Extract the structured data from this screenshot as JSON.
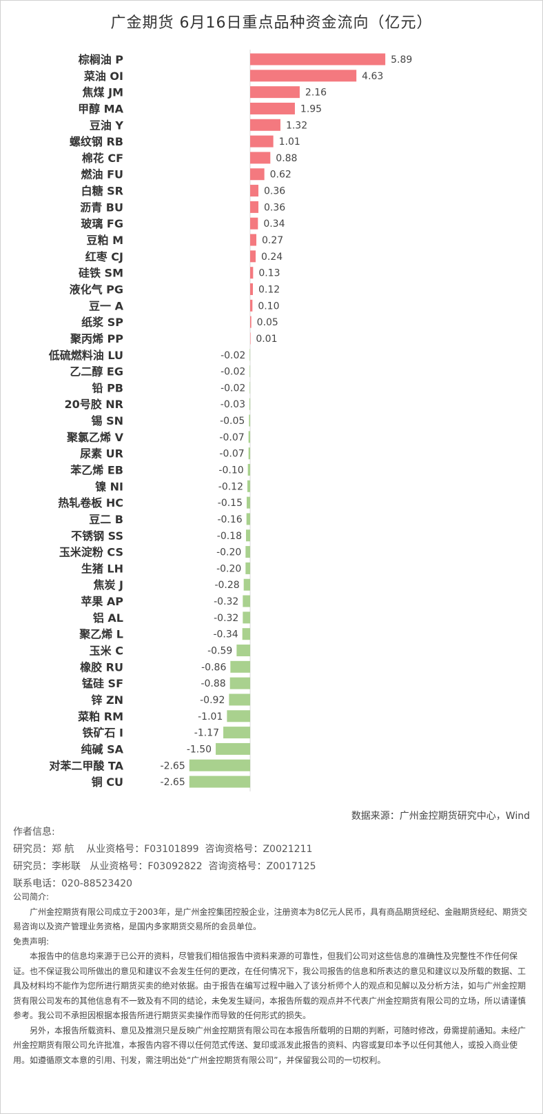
{
  "chart_data": {
    "type": "bar",
    "orientation": "horizontal",
    "title": "广金期货 6月16日重点品种资金流向（亿元）",
    "categories": [
      "棕榈油 P",
      "菜油 OI",
      "焦煤 JM",
      "甲醇 MA",
      "豆油 Y",
      "螺纹钢 RB",
      "棉花 CF",
      "燃油 FU",
      "白糖 SR",
      "沥青 BU",
      "玻璃 FG",
      "豆粕 M",
      "红枣 CJ",
      "硅铁 SM",
      "液化气 PG",
      "豆一 A",
      "纸浆 SP",
      "聚丙烯 PP",
      "低硫燃料油 LU",
      "乙二醇 EG",
      "铅 PB",
      "20号胶 NR",
      "锡 SN",
      "聚氯乙烯 V",
      "尿素 UR",
      "苯乙烯 EB",
      "镍 NI",
      "热轧卷板 HC",
      "豆二 B",
      "不锈钢 SS",
      "玉米淀粉 CS",
      "生猪 LH",
      "焦炭 J",
      "苹果 AP",
      "铝 AL",
      "聚乙烯 L",
      "玉米 C",
      "橡胶 RU",
      "锰硅 SF",
      "锌 ZN",
      "菜粕 RM",
      "铁矿石 I",
      "纯碱 SA",
      "对苯二甲酸 TA",
      "铜 CU"
    ],
    "values": [
      5.89,
      4.63,
      2.16,
      1.95,
      1.32,
      1.01,
      0.88,
      0.62,
      0.36,
      0.36,
      0.34,
      0.27,
      0.24,
      0.13,
      0.12,
      0.1,
      0.05,
      0.01,
      -0.02,
      -0.02,
      -0.02,
      -0.03,
      -0.05,
      -0.07,
      -0.07,
      -0.1,
      -0.12,
      -0.15,
      -0.16,
      -0.18,
      -0.2,
      -0.2,
      -0.28,
      -0.32,
      -0.32,
      -0.34,
      -0.59,
      -0.86,
      -0.88,
      -0.92,
      -1.01,
      -1.17,
      -1.5,
      -2.65,
      -2.65
    ],
    "labels": [
      "5.89",
      "4.63",
      "2.16",
      "1.95",
      "1.32",
      "1.01",
      "0.88",
      "0.62",
      "0.36",
      "0.36",
      "0.34",
      "0.27",
      "0.24",
      "0.13",
      "0.12",
      "0.10",
      "0.05",
      "0.01",
      "-0.02",
      "-0.02",
      "-0.02",
      "-0.03",
      "-0.05",
      "-0.07",
      "-0.07",
      "-0.10",
      "-0.12",
      "-0.15",
      "-0.16",
      "-0.18",
      "-0.20",
      "-0.20",
      "-0.28",
      "-0.32",
      "-0.32",
      "-0.34",
      "-0.59",
      "-0.86",
      "-0.88",
      "-0.92",
      "-1.01",
      "-1.17",
      "-1.50",
      "-2.65",
      "-2.65"
    ],
    "colors": {
      "positive": "#f4797f",
      "negative": "#a9d18e"
    }
  },
  "footer": {
    "source": "数据来源：广州金控期货研究中心，Wind",
    "author_heading": "作者信息:",
    "researcher1": "研究员：郑 航    从业资格号：F03101899  咨询资格号：Z0021211",
    "researcher2": "研究员：李彬联   从业资格号：F03092822  咨询资格号：Z0017125",
    "phone": "联系电话：020-88523420",
    "company_heading": "公司简介:",
    "company_text": "广州金控期货有限公司成立于2003年，是广州金控集团控股企业，注册资本为8亿元人民币，具有商品期货经纪、金融期货经纪、期货交易咨询以及资产管理业务资格，是国内多家期货交易所的会员单位。",
    "disclaimer_heading": "免责声明:",
    "disclaimer_p1": "本报告中的信息均来源于已公开的资料，尽管我们相信报告中资料来源的可靠性，但我们公司对这些信息的准确性及完整性不作任何保证。也不保证我公司所做出的意见和建议不会发生任何的更改，在任何情况下，我公司报告的信息和所表达的意见和建议以及所载的数据、工具及材料均不能作为您所进行期货买卖的绝对依据。由于报告在编写过程中融入了该分析师个人的观点和见解以及分析方法，如与广州金控期货有限公司发布的其他信息有不一致及有不同的结论，未免发生疑问，本报告所载的观点并不代表广州金控期货有限公司的立场，所以请谨慎参考。我公司不承担因根据本报告所进行期货买卖操作而导致的任何形式的损失。",
    "disclaimer_p2": "另外，本报告所载资料、意见及推测只是反映广州金控期货有限公司在本报告所载明的日期的判断，可随时修改，毋需提前通知。未经广州金控期货有限公司允许批准，本报告内容不得以任何范式传送、复印或派发此报告的资料、内容或复印本予以任何其他人，或投入商业使用。如遵循原文本意的引用、刊发，需注明出处“广州金控期货有限公司”，并保留我公司的一切权利。"
  }
}
